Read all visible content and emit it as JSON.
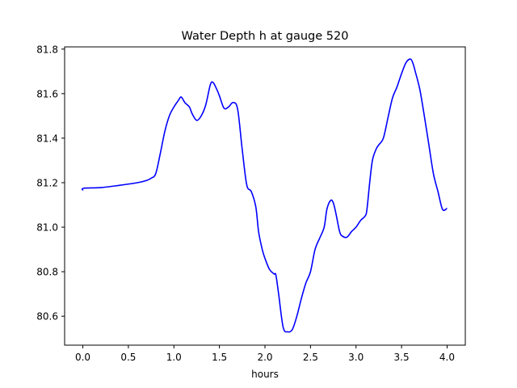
{
  "chart_data": {
    "type": "line",
    "title": "Water Depth h at gauge 520",
    "xlabel": "hours",
    "ylabel": "",
    "xlim": [
      -0.2,
      4.2
    ],
    "ylim": [
      80.47,
      81.81
    ],
    "xticks": [
      0.0,
      0.5,
      1.0,
      1.5,
      2.0,
      2.5,
      3.0,
      3.5,
      4.0
    ],
    "xtick_labels": [
      "0.0",
      "0.5",
      "1.0",
      "1.5",
      "2.0",
      "2.5",
      "3.0",
      "3.5",
      "4.0"
    ],
    "yticks": [
      80.6,
      80.8,
      81.0,
      81.2,
      81.4,
      81.6,
      81.8
    ],
    "ytick_labels": [
      "80.6",
      "80.8",
      "81.0",
      "81.2",
      "81.4",
      "81.6",
      "81.8"
    ],
    "grid": false,
    "series": [
      {
        "color": "#0000ff",
        "x": [
          0.0,
          0.01,
          0.2,
          0.4,
          0.6,
          0.7,
          0.75,
          0.8,
          0.85,
          0.9,
          0.95,
          1.0,
          1.05,
          1.08,
          1.12,
          1.17,
          1.2,
          1.25,
          1.3,
          1.35,
          1.4,
          1.43,
          1.47,
          1.5,
          1.55,
          1.6,
          1.65,
          1.7,
          1.75,
          1.8,
          1.85,
          1.9,
          1.93,
          1.97,
          2.0,
          2.05,
          2.1,
          2.12,
          2.15,
          2.2,
          2.25,
          2.3,
          2.35,
          2.4,
          2.45,
          2.5,
          2.55,
          2.6,
          2.65,
          2.68,
          2.72,
          2.75,
          2.78,
          2.82,
          2.85,
          2.9,
          2.95,
          3.0,
          3.05,
          3.1,
          3.12,
          3.15,
          3.18,
          3.22,
          3.25,
          3.3,
          3.35,
          3.4,
          3.45,
          3.5,
          3.55,
          3.6,
          3.63,
          3.65,
          3.7,
          3.75,
          3.8,
          3.85,
          3.9,
          3.95,
          4.0
        ],
        "y": [
          81.165,
          81.175,
          81.178,
          81.188,
          81.2,
          81.21,
          81.22,
          81.24,
          81.33,
          81.43,
          81.5,
          81.54,
          81.57,
          81.585,
          81.56,
          81.54,
          81.51,
          81.48,
          81.5,
          81.55,
          81.64,
          81.65,
          81.62,
          81.59,
          81.535,
          81.54,
          81.56,
          81.53,
          81.35,
          81.19,
          81.16,
          81.09,
          80.98,
          80.9,
          80.86,
          80.81,
          80.79,
          80.785,
          80.7,
          80.55,
          80.53,
          80.54,
          80.6,
          80.68,
          80.75,
          80.8,
          80.9,
          80.95,
          81.0,
          81.08,
          81.12,
          81.11,
          81.06,
          80.98,
          80.96,
          80.955,
          80.98,
          81.0,
          81.03,
          81.05,
          81.08,
          81.2,
          81.3,
          81.35,
          81.37,
          81.4,
          81.49,
          81.58,
          81.63,
          81.69,
          81.74,
          81.755,
          81.73,
          81.7,
          81.62,
          81.5,
          81.37,
          81.24,
          81.16,
          81.08,
          81.085
        ]
      }
    ]
  }
}
